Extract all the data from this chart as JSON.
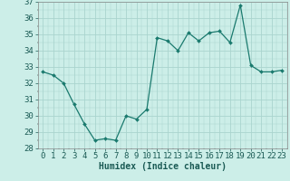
{
  "x": [
    0,
    1,
    2,
    3,
    4,
    5,
    6,
    7,
    8,
    9,
    10,
    11,
    12,
    13,
    14,
    15,
    16,
    17,
    18,
    19,
    20,
    21,
    22,
    23
  ],
  "y": [
    32.7,
    32.5,
    32.0,
    30.7,
    29.5,
    28.5,
    28.6,
    28.5,
    30.0,
    29.8,
    30.4,
    34.8,
    34.6,
    34.0,
    35.1,
    34.6,
    35.1,
    35.2,
    34.5,
    36.8,
    33.1,
    32.7,
    32.7,
    32.8
  ],
  "line_color": "#1a7a6e",
  "marker": "D",
  "marker_size": 2.0,
  "bg_color": "#cceee8",
  "grid_major_color": "#aad4ce",
  "xlabel": "Humidex (Indice chaleur)",
  "ylim": [
    28,
    37
  ],
  "xlim_min": -0.5,
  "xlim_max": 23.5,
  "yticks": [
    28,
    29,
    30,
    31,
    32,
    33,
    34,
    35,
    36,
    37
  ],
  "xticks": [
    0,
    1,
    2,
    3,
    4,
    5,
    6,
    7,
    8,
    9,
    10,
    11,
    12,
    13,
    14,
    15,
    16,
    17,
    18,
    19,
    20,
    21,
    22,
    23
  ],
  "xlabel_fontsize": 7,
  "tick_fontsize": 6.5
}
